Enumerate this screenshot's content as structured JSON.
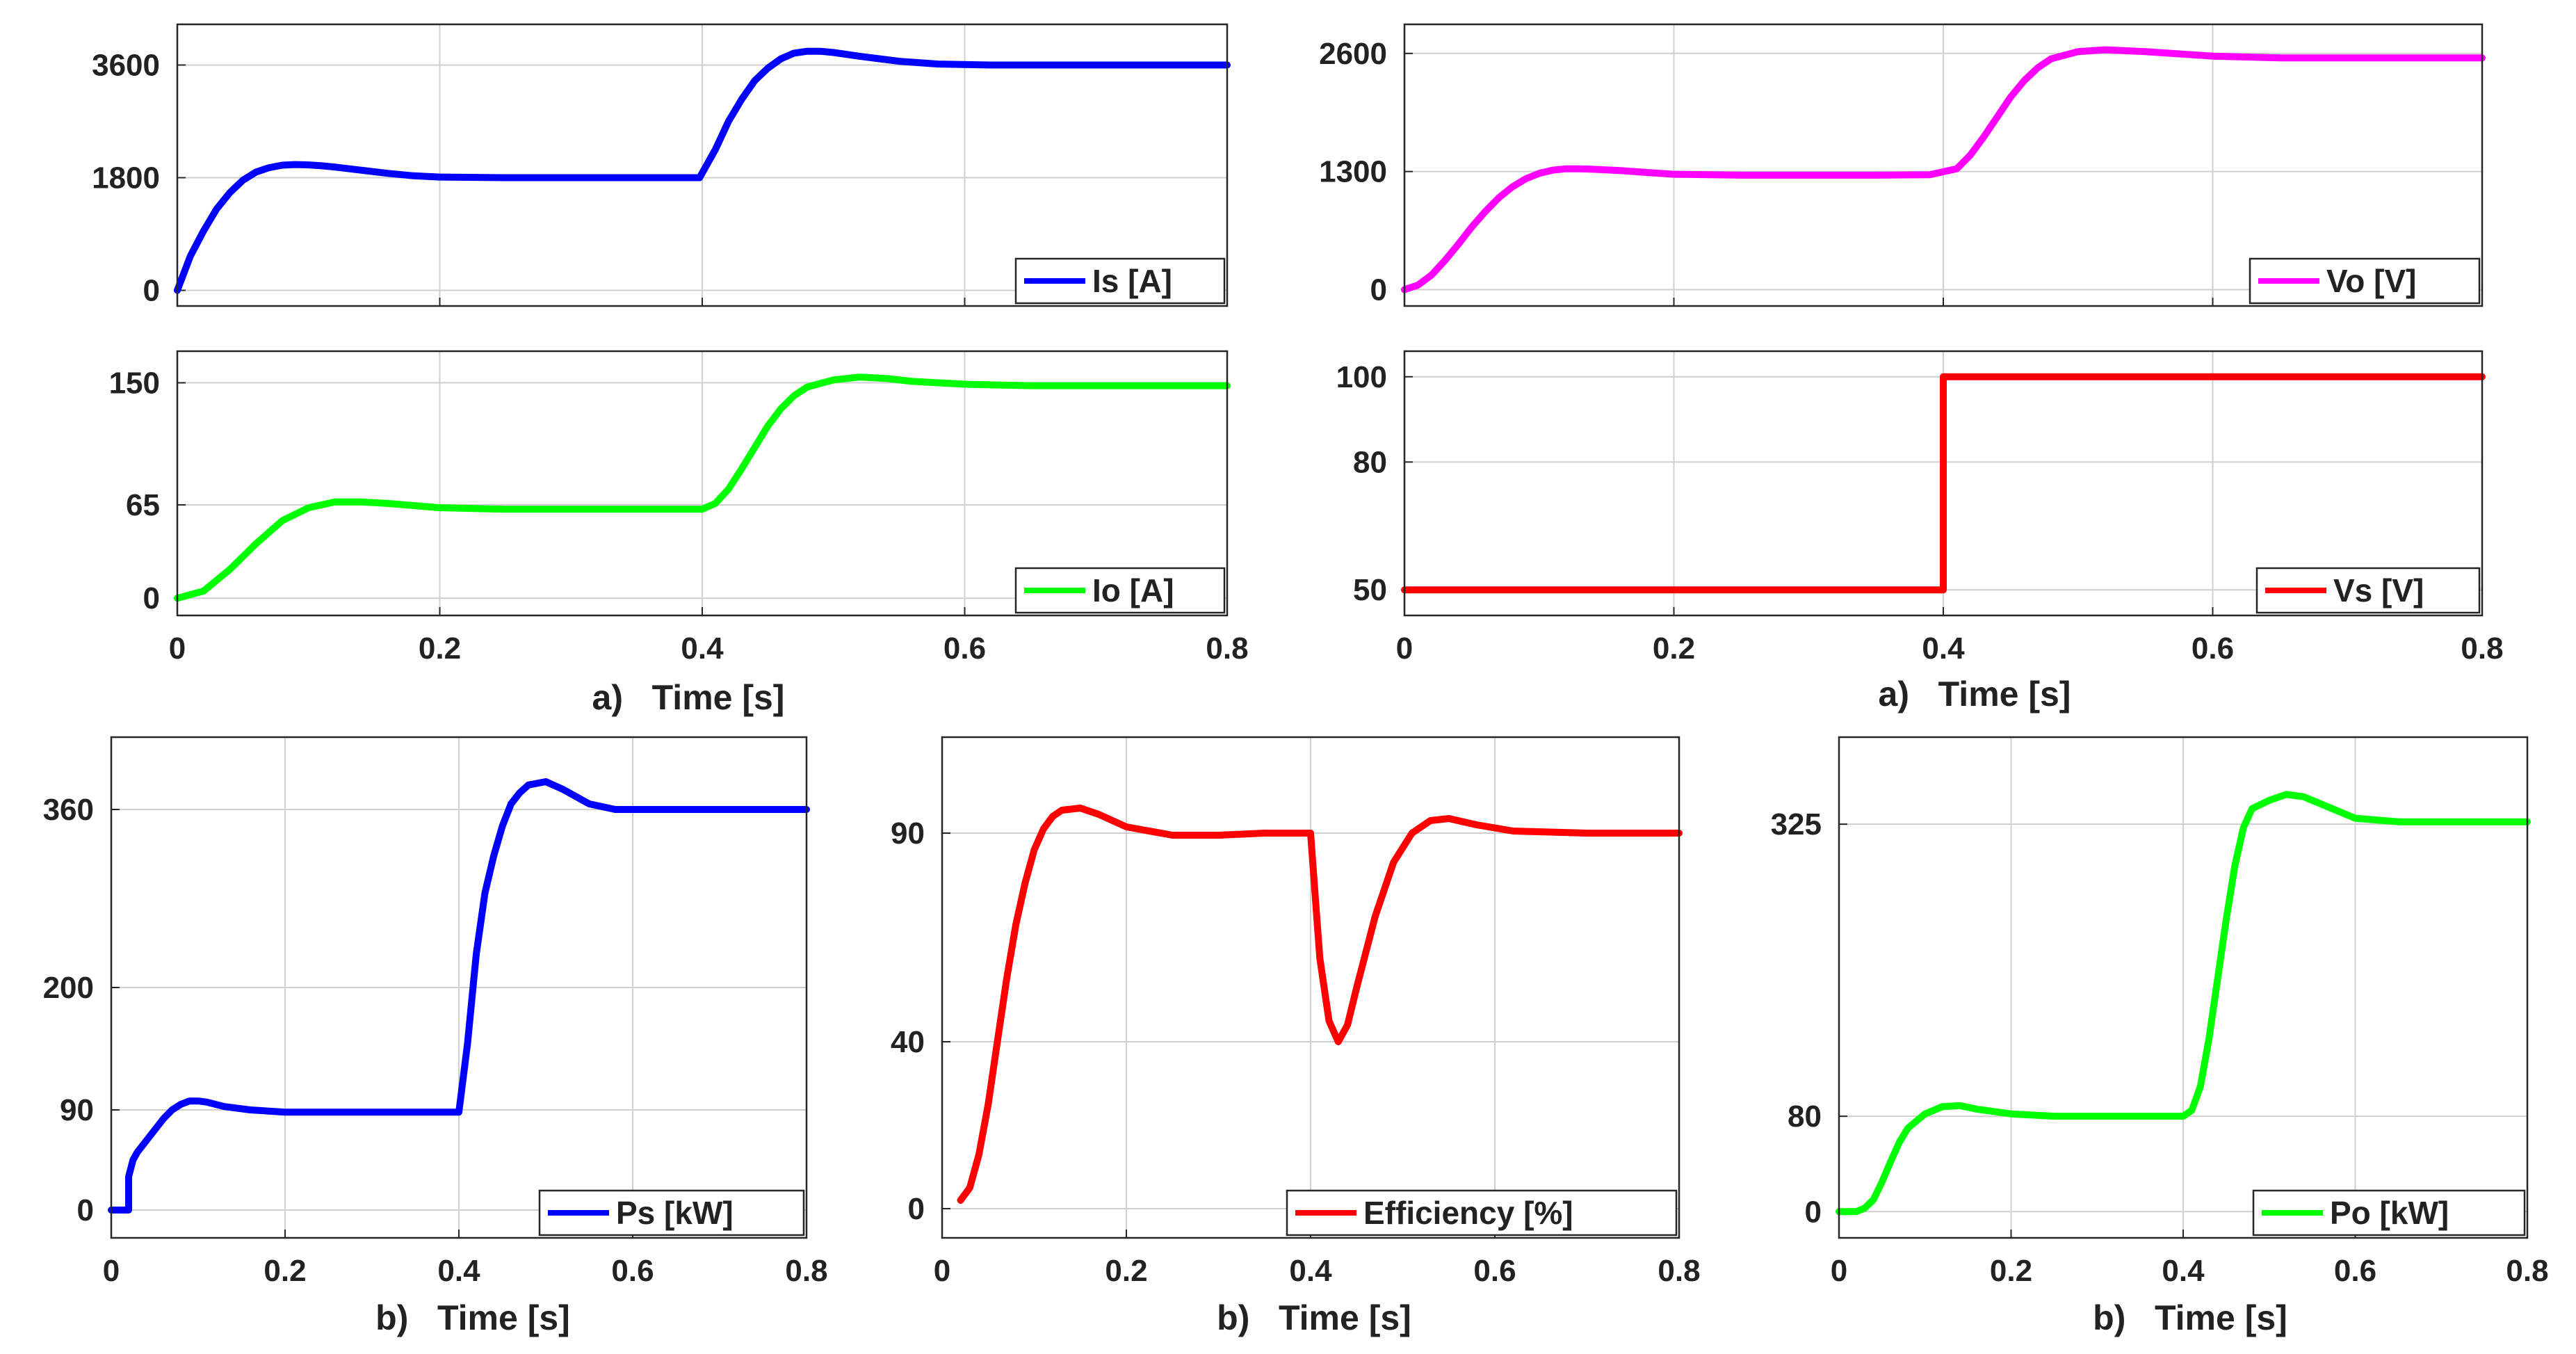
{
  "figure": {
    "captions": {
      "top_left": "a)   Time [s]",
      "top_right": "a)   Time [s]",
      "bottom_left": "b)   Time [s]",
      "bottom_middle": "b)   Time [s]",
      "bottom_right": "b)   Time [s]"
    }
  },
  "chart_data": [
    {
      "id": "is",
      "type": "line",
      "series": [
        {
          "name": "Is [A]",
          "color": "#0000ff",
          "points": [
            [
              0,
              0
            ],
            [
              0.01,
              550
            ],
            [
              0.02,
              950
            ],
            [
              0.03,
              1300
            ],
            [
              0.04,
              1560
            ],
            [
              0.05,
              1760
            ],
            [
              0.06,
              1890
            ],
            [
              0.07,
              1960
            ],
            [
              0.08,
              2000
            ],
            [
              0.09,
              2010
            ],
            [
              0.1,
              2005
            ],
            [
              0.11,
              1990
            ],
            [
              0.12,
              1970
            ],
            [
              0.14,
              1920
            ],
            [
              0.16,
              1870
            ],
            [
              0.18,
              1830
            ],
            [
              0.2,
              1810
            ],
            [
              0.25,
              1800
            ],
            [
              0.3,
              1800
            ],
            [
              0.35,
              1800
            ],
            [
              0.398,
              1800
            ],
            [
              0.41,
              2250
            ],
            [
              0.42,
              2700
            ],
            [
              0.43,
              3050
            ],
            [
              0.44,
              3350
            ],
            [
              0.45,
              3550
            ],
            [
              0.46,
              3700
            ],
            [
              0.47,
              3790
            ],
            [
              0.48,
              3820
            ],
            [
              0.49,
              3820
            ],
            [
              0.5,
              3800
            ],
            [
              0.52,
              3740
            ],
            [
              0.55,
              3660
            ],
            [
              0.58,
              3615
            ],
            [
              0.62,
              3600
            ],
            [
              0.7,
              3600
            ],
            [
              0.8,
              3600
            ]
          ]
        }
      ],
      "xlim": [
        0,
        0.8
      ],
      "ylim": [
        -250,
        4250
      ],
      "xticks": [
        0,
        0.2,
        0.4,
        0.6,
        0.8
      ],
      "xtick_labels": [],
      "yticks": [
        0,
        1800,
        3600
      ],
      "ytick_labels": [
        "0",
        "1800",
        "3600"
      ],
      "grid": true,
      "legend_loc": "bottom-right"
    },
    {
      "id": "io",
      "type": "line",
      "series": [
        {
          "name": "Io [A]",
          "color": "#00ff00",
          "points": [
            [
              0,
              0
            ],
            [
              0.02,
              5
            ],
            [
              0.04,
              20
            ],
            [
              0.06,
              38
            ],
            [
              0.08,
              54
            ],
            [
              0.1,
              63
            ],
            [
              0.12,
              67
            ],
            [
              0.14,
              67
            ],
            [
              0.16,
              66
            ],
            [
              0.18,
              64.5
            ],
            [
              0.2,
              63
            ],
            [
              0.25,
              62
            ],
            [
              0.3,
              62
            ],
            [
              0.35,
              62
            ],
            [
              0.4,
              62
            ],
            [
              0.41,
              66
            ],
            [
              0.42,
              76
            ],
            [
              0.43,
              90
            ],
            [
              0.44,
              105
            ],
            [
              0.45,
              120
            ],
            [
              0.46,
              132
            ],
            [
              0.47,
              141
            ],
            [
              0.48,
              147
            ],
            [
              0.5,
              152
            ],
            [
              0.52,
              154
            ],
            [
              0.54,
              153
            ],
            [
              0.56,
              151
            ],
            [
              0.6,
              149
            ],
            [
              0.65,
              148
            ],
            [
              0.8,
              148
            ]
          ]
        }
      ],
      "xlim": [
        0,
        0.8
      ],
      "ylim": [
        -12,
        172
      ],
      "xticks": [
        0,
        0.2,
        0.4,
        0.6,
        0.8
      ],
      "xtick_labels": [
        "0",
        "0.2",
        "0.4",
        "0.6",
        "0.8"
      ],
      "yticks": [
        0,
        65,
        150
      ],
      "ytick_labels": [
        "0",
        "65",
        "150"
      ],
      "grid": true,
      "legend_loc": "bottom-right"
    },
    {
      "id": "vo",
      "type": "line",
      "series": [
        {
          "name": "Vo [V]",
          "color": "#ff00ff",
          "points": [
            [
              0,
              0
            ],
            [
              0.01,
              50
            ],
            [
              0.02,
              160
            ],
            [
              0.03,
              320
            ],
            [
              0.04,
              500
            ],
            [
              0.05,
              690
            ],
            [
              0.06,
              860
            ],
            [
              0.07,
              1010
            ],
            [
              0.08,
              1130
            ],
            [
              0.09,
              1220
            ],
            [
              0.1,
              1280
            ],
            [
              0.11,
              1315
            ],
            [
              0.12,
              1330
            ],
            [
              0.13,
              1330
            ],
            [
              0.14,
              1325
            ],
            [
              0.16,
              1310
            ],
            [
              0.18,
              1290
            ],
            [
              0.2,
              1270
            ],
            [
              0.25,
              1260
            ],
            [
              0.3,
              1260
            ],
            [
              0.35,
              1260
            ],
            [
              0.39,
              1265
            ],
            [
              0.41,
              1330
            ],
            [
              0.42,
              1480
            ],
            [
              0.43,
              1680
            ],
            [
              0.44,
              1900
            ],
            [
              0.45,
              2120
            ],
            [
              0.46,
              2300
            ],
            [
              0.47,
              2440
            ],
            [
              0.48,
              2540
            ],
            [
              0.5,
              2620
            ],
            [
              0.52,
              2640
            ],
            [
              0.55,
              2620
            ],
            [
              0.6,
              2570
            ],
            [
              0.65,
              2550
            ],
            [
              0.8,
              2550
            ]
          ]
        }
      ],
      "xlim": [
        0,
        0.8
      ],
      "ylim": [
        -180,
        2920
      ],
      "xticks": [
        0,
        0.2,
        0.4,
        0.6,
        0.8
      ],
      "xtick_labels": [],
      "yticks": [
        0,
        1300,
        2600
      ],
      "ytick_labels": [
        "0",
        "1300",
        "2600"
      ],
      "grid": true,
      "legend_loc": "bottom-right"
    },
    {
      "id": "vs",
      "type": "line",
      "series": [
        {
          "name": "Vs [V]",
          "color": "#ff0000",
          "points": [
            [
              0,
              50
            ],
            [
              0.4,
              50
            ],
            [
              0.4,
              100
            ],
            [
              0.8,
              100
            ]
          ]
        }
      ],
      "xlim": [
        0,
        0.8
      ],
      "ylim": [
        44,
        106
      ],
      "xticks": [
        0,
        0.2,
        0.4,
        0.6,
        0.8
      ],
      "xtick_labels": [
        "0",
        "0.2",
        "0.4",
        "0.6",
        "0.8"
      ],
      "yticks": [
        50,
        80,
        100
      ],
      "ytick_labels": [
        "50",
        "80",
        "100"
      ],
      "grid": true,
      "legend_loc": "bottom-right"
    },
    {
      "id": "ps",
      "type": "line",
      "series": [
        {
          "name": "Ps [kW]",
          "color": "#0000ff",
          "points": [
            [
              0,
              0
            ],
            [
              0.02,
              0
            ],
            [
              0.02,
              30
            ],
            [
              0.025,
              45
            ],
            [
              0.03,
              52
            ],
            [
              0.04,
              62
            ],
            [
              0.05,
              72
            ],
            [
              0.06,
              82
            ],
            [
              0.07,
              90
            ],
            [
              0.08,
              95
            ],
            [
              0.09,
              98
            ],
            [
              0.1,
              98
            ],
            [
              0.11,
              97
            ],
            [
              0.13,
              93
            ],
            [
              0.16,
              90
            ],
            [
              0.2,
              88
            ],
            [
              0.3,
              88
            ],
            [
              0.4,
              88
            ],
            [
              0.41,
              150
            ],
            [
              0.42,
              230
            ],
            [
              0.43,
              285
            ],
            [
              0.44,
              318
            ],
            [
              0.45,
              345
            ],
            [
              0.46,
              365
            ],
            [
              0.47,
              375
            ],
            [
              0.48,
              382
            ],
            [
              0.5,
              385
            ],
            [
              0.52,
              378
            ],
            [
              0.55,
              365
            ],
            [
              0.58,
              360
            ],
            [
              0.65,
              360
            ],
            [
              0.8,
              360
            ]
          ]
        }
      ],
      "xlim": [
        0,
        0.8
      ],
      "ylim": [
        -25,
        425
      ],
      "xticks": [
        0,
        0.2,
        0.4,
        0.6,
        0.8
      ],
      "xtick_labels": [
        "0",
        "0.2",
        "0.4",
        "0.6",
        "0.8"
      ],
      "yticks": [
        0,
        90,
        200,
        360
      ],
      "ytick_labels": [
        "0",
        "90",
        "200",
        "360"
      ],
      "grid": true,
      "legend_loc": "bottom-right"
    },
    {
      "id": "eff",
      "type": "line",
      "series": [
        {
          "name": "Efficiency [%]",
          "color": "#ff0000",
          "points": [
            [
              0.02,
              2
            ],
            [
              0.03,
              5
            ],
            [
              0.04,
              13
            ],
            [
              0.05,
              25
            ],
            [
              0.06,
              40
            ],
            [
              0.07,
              55
            ],
            [
              0.08,
              68
            ],
            [
              0.09,
              78
            ],
            [
              0.1,
              86
            ],
            [
              0.11,
              91
            ],
            [
              0.12,
              94
            ],
            [
              0.13,
              95.5
            ],
            [
              0.15,
              96
            ],
            [
              0.17,
              94.5
            ],
            [
              0.2,
              91.5
            ],
            [
              0.25,
              89.5
            ],
            [
              0.3,
              89.5
            ],
            [
              0.35,
              90
            ],
            [
              0.4,
              90
            ],
            [
              0.405,
              75
            ],
            [
              0.41,
              60
            ],
            [
              0.42,
              45
            ],
            [
              0.43,
              40
            ],
            [
              0.44,
              44
            ],
            [
              0.45,
              53
            ],
            [
              0.47,
              70
            ],
            [
              0.49,
              83
            ],
            [
              0.51,
              90
            ],
            [
              0.53,
              93
            ],
            [
              0.55,
              93.5
            ],
            [
              0.58,
              92
            ],
            [
              0.62,
              90.5
            ],
            [
              0.7,
              90
            ],
            [
              0.8,
              90
            ]
          ]
        }
      ],
      "xlim": [
        0,
        0.8
      ],
      "ylim": [
        -7,
        113
      ],
      "xticks": [
        0,
        0.2,
        0.4,
        0.6,
        0.8
      ],
      "xtick_labels": [
        "0",
        "0.2",
        "0.4",
        "0.6",
        "0.8"
      ],
      "yticks": [
        0,
        40,
        90
      ],
      "ytick_labels": [
        "0",
        "40",
        "90"
      ],
      "grid": true,
      "legend_loc": "bottom-right"
    },
    {
      "id": "po",
      "type": "line",
      "series": [
        {
          "name": "Po [kW]",
          "color": "#00ff00",
          "points": [
            [
              0,
              0
            ],
            [
              0.02,
              0
            ],
            [
              0.03,
              3
            ],
            [
              0.04,
              10
            ],
            [
              0.05,
              25
            ],
            [
              0.06,
              42
            ],
            [
              0.07,
              58
            ],
            [
              0.08,
              70
            ],
            [
              0.1,
              82
            ],
            [
              0.12,
              88
            ],
            [
              0.14,
              89
            ],
            [
              0.16,
              86
            ],
            [
              0.2,
              82
            ],
            [
              0.25,
              80
            ],
            [
              0.3,
              80
            ],
            [
              0.35,
              80
            ],
            [
              0.4,
              80
            ],
            [
              0.41,
              85
            ],
            [
              0.42,
              105
            ],
            [
              0.43,
              145
            ],
            [
              0.44,
              195
            ],
            [
              0.45,
              245
            ],
            [
              0.46,
              290
            ],
            [
              0.47,
              322
            ],
            [
              0.48,
              338
            ],
            [
              0.5,
              345
            ],
            [
              0.52,
              350
            ],
            [
              0.54,
              348
            ],
            [
              0.56,
              342
            ],
            [
              0.6,
              330
            ],
            [
              0.65,
              327
            ],
            [
              0.8,
              327
            ]
          ]
        }
      ],
      "xlim": [
        0,
        0.8
      ],
      "ylim": [
        -22,
        398
      ],
      "xticks": [
        0,
        0.2,
        0.4,
        0.6,
        0.8
      ],
      "xtick_labels": [
        "0",
        "0.2",
        "0.4",
        "0.6",
        "0.8"
      ],
      "yticks": [
        0,
        80,
        325
      ],
      "ytick_labels": [
        "0",
        "80",
        "325"
      ],
      "grid": true,
      "legend_loc": "bottom-right"
    }
  ]
}
